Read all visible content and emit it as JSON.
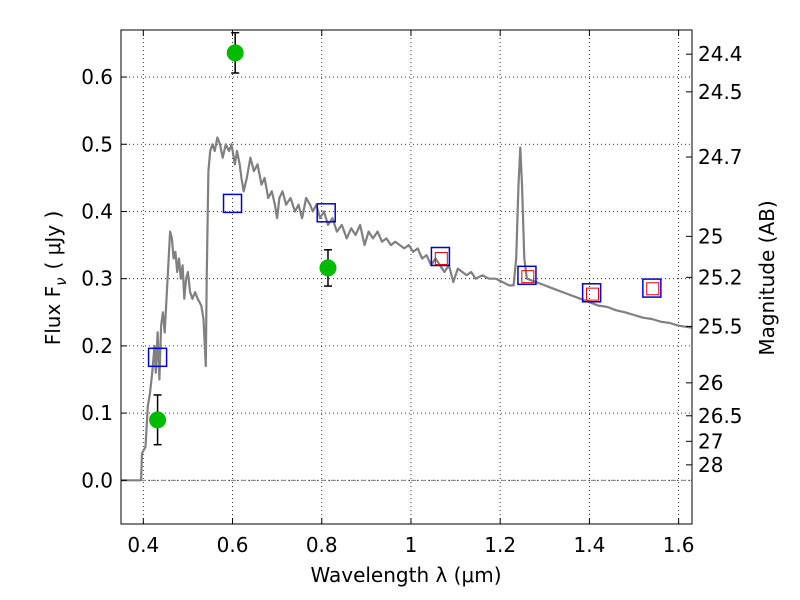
{
  "chart_data": {
    "type": "scatter",
    "xlabel": "Wavelength  λ (μm)",
    "ylabel": "Flux  F",
    "ylabel_sub": "ν",
    "ylabel_unit": "( μJy )",
    "y2label": "Magnitude (AB)",
    "xlim": [
      0.35,
      1.63
    ],
    "ylim": [
      -0.065,
      0.67
    ],
    "grid": true,
    "grid_style": "dotted",
    "x_ticks": [
      {
        "value": 0.4,
        "label": "0.4"
      },
      {
        "value": 0.6,
        "label": "0.6"
      },
      {
        "value": 0.8,
        "label": "0.8"
      },
      {
        "value": 1.0,
        "label": "1"
      },
      {
        "value": 1.2,
        "label": "1.2"
      },
      {
        "value": 1.4,
        "label": "1.4"
      },
      {
        "value": 1.6,
        "label": "1.6"
      }
    ],
    "y_ticks": [
      {
        "value": 0.0,
        "label": "0.0"
      },
      {
        "value": 0.1,
        "label": "0.1"
      },
      {
        "value": 0.2,
        "label": "0.2"
      },
      {
        "value": 0.3,
        "label": "0.3"
      },
      {
        "value": 0.4,
        "label": "0.4"
      },
      {
        "value": 0.5,
        "label": "0.5"
      },
      {
        "value": 0.6,
        "label": "0.6"
      }
    ],
    "y2_ticks": [
      {
        "flux": 0.634,
        "label": "24.4"
      },
      {
        "flux": 0.578,
        "label": "24.5"
      },
      {
        "flux": 0.481,
        "label": "24.7"
      },
      {
        "flux": 0.363,
        "label": "25"
      },
      {
        "flux": 0.302,
        "label": "25.2"
      },
      {
        "flux": 0.229,
        "label": "25.5"
      },
      {
        "flux": 0.145,
        "label": "26"
      },
      {
        "flux": 0.096,
        "label": "26.5"
      },
      {
        "flux": 0.058,
        "label": "27"
      },
      {
        "flux": 0.023,
        "label": "28"
      }
    ],
    "colors": {
      "model": "#808080",
      "observed": "#00bb00",
      "model_band": "#0000dd",
      "model_band_inner": "#ee0000",
      "zero_line": "#808080"
    },
    "model_sed": [
      [
        0.35,
        0.0
      ],
      [
        0.388,
        0.0
      ],
      [
        0.395,
        0.0
      ],
      [
        0.397,
        0.04
      ],
      [
        0.405,
        0.05
      ],
      [
        0.41,
        0.11
      ],
      [
        0.415,
        0.13
      ],
      [
        0.42,
        0.16
      ],
      [
        0.425,
        0.2
      ],
      [
        0.428,
        0.16
      ],
      [
        0.432,
        0.22
      ],
      [
        0.436,
        0.15
      ],
      [
        0.44,
        0.23
      ],
      [
        0.444,
        0.25
      ],
      [
        0.448,
        0.22
      ],
      [
        0.452,
        0.27
      ],
      [
        0.456,
        0.32
      ],
      [
        0.46,
        0.37
      ],
      [
        0.464,
        0.36
      ],
      [
        0.468,
        0.33
      ],
      [
        0.472,
        0.34
      ],
      [
        0.476,
        0.31
      ],
      [
        0.48,
        0.33
      ],
      [
        0.484,
        0.3
      ],
      [
        0.488,
        0.32
      ],
      [
        0.492,
        0.27
      ],
      [
        0.496,
        0.3
      ],
      [
        0.5,
        0.31
      ],
      [
        0.505,
        0.28
      ],
      [
        0.51,
        0.27
      ],
      [
        0.516,
        0.28
      ],
      [
        0.522,
        0.27
      ],
      [
        0.53,
        0.26
      ],
      [
        0.535,
        0.24
      ],
      [
        0.54,
        0.17
      ],
      [
        0.542,
        0.3
      ],
      [
        0.546,
        0.46
      ],
      [
        0.55,
        0.49
      ],
      [
        0.555,
        0.5
      ],
      [
        0.56,
        0.49
      ],
      [
        0.566,
        0.51
      ],
      [
        0.572,
        0.5
      ],
      [
        0.578,
        0.48
      ],
      [
        0.585,
        0.5
      ],
      [
        0.592,
        0.49
      ],
      [
        0.598,
        0.5
      ],
      [
        0.605,
        0.47
      ],
      [
        0.61,
        0.49
      ],
      [
        0.616,
        0.47
      ],
      [
        0.62,
        0.45
      ],
      [
        0.625,
        0.43
      ],
      [
        0.632,
        0.45
      ],
      [
        0.64,
        0.48
      ],
      [
        0.648,
        0.46
      ],
      [
        0.656,
        0.47
      ],
      [
        0.665,
        0.44
      ],
      [
        0.672,
        0.45
      ],
      [
        0.68,
        0.42
      ],
      [
        0.688,
        0.43
      ],
      [
        0.695,
        0.41
      ],
      [
        0.7,
        0.39
      ],
      [
        0.705,
        0.42
      ],
      [
        0.712,
        0.43
      ],
      [
        0.72,
        0.41
      ],
      [
        0.73,
        0.42
      ],
      [
        0.74,
        0.4
      ],
      [
        0.748,
        0.41
      ],
      [
        0.756,
        0.39
      ],
      [
        0.765,
        0.42
      ],
      [
        0.774,
        0.41
      ],
      [
        0.78,
        0.4
      ],
      [
        0.788,
        0.41
      ],
      [
        0.796,
        0.39
      ],
      [
        0.805,
        0.4
      ],
      [
        0.814,
        0.38
      ],
      [
        0.824,
        0.39
      ],
      [
        0.834,
        0.37
      ],
      [
        0.845,
        0.38
      ],
      [
        0.856,
        0.36
      ],
      [
        0.866,
        0.375
      ],
      [
        0.876,
        0.365
      ],
      [
        0.886,
        0.38
      ],
      [
        0.896,
        0.35
      ],
      [
        0.905,
        0.37
      ],
      [
        0.915,
        0.36
      ],
      [
        0.925,
        0.37
      ],
      [
        0.935,
        0.355
      ],
      [
        0.945,
        0.36
      ],
      [
        0.955,
        0.35
      ],
      [
        0.965,
        0.355
      ],
      [
        0.975,
        0.35
      ],
      [
        0.985,
        0.345
      ],
      [
        0.995,
        0.35
      ],
      [
        1.005,
        0.34
      ],
      [
        1.015,
        0.345
      ],
      [
        1.025,
        0.33
      ],
      [
        1.035,
        0.335
      ],
      [
        1.045,
        0.32
      ],
      [
        1.055,
        0.33
      ],
      [
        1.065,
        0.32
      ],
      [
        1.075,
        0.31
      ],
      [
        1.085,
        0.32
      ],
      [
        1.095,
        0.295
      ],
      [
        1.105,
        0.315
      ],
      [
        1.115,
        0.31
      ],
      [
        1.125,
        0.305
      ],
      [
        1.135,
        0.31
      ],
      [
        1.145,
        0.3
      ],
      [
        1.16,
        0.305
      ],
      [
        1.175,
        0.3
      ],
      [
        1.19,
        0.3
      ],
      [
        1.205,
        0.295
      ],
      [
        1.22,
        0.29
      ],
      [
        1.23,
        0.29
      ],
      [
        1.236,
        0.33
      ],
      [
        1.241,
        0.44
      ],
      [
        1.245,
        0.495
      ],
      [
        1.249,
        0.44
      ],
      [
        1.254,
        0.33
      ],
      [
        1.26,
        0.3
      ],
      [
        1.28,
        0.295
      ],
      [
        1.3,
        0.29
      ],
      [
        1.32,
        0.285
      ],
      [
        1.34,
        0.28
      ],
      [
        1.36,
        0.275
      ],
      [
        1.38,
        0.27
      ],
      [
        1.4,
        0.265
      ],
      [
        1.42,
        0.26
      ],
      [
        1.44,
        0.258
      ],
      [
        1.46,
        0.253
      ],
      [
        1.48,
        0.25
      ],
      [
        1.5,
        0.246
      ],
      [
        1.52,
        0.242
      ],
      [
        1.54,
        0.24
      ],
      [
        1.56,
        0.236
      ],
      [
        1.58,
        0.234
      ],
      [
        1.6,
        0.23
      ],
      [
        1.63,
        0.227
      ]
    ],
    "observed_points": [
      {
        "x": 0.432,
        "y": 0.09,
        "err": 0.037
      },
      {
        "x": 0.606,
        "y": 0.636,
        "err": 0.03
      },
      {
        "x": 0.814,
        "y": 0.316,
        "err": 0.027
      }
    ],
    "model_band_points": [
      {
        "x": 0.432,
        "y": 0.183
      },
      {
        "x": 0.6,
        "y": 0.412
      },
      {
        "x": 0.81,
        "y": 0.398
      },
      {
        "x": 1.066,
        "y": 0.333
      },
      {
        "x": 1.26,
        "y": 0.305
      },
      {
        "x": 1.405,
        "y": 0.279
      },
      {
        "x": 1.54,
        "y": 0.286
      }
    ],
    "model_band_inner_points": [
      {
        "x": 1.068,
        "y": 0.33
      },
      {
        "x": 1.262,
        "y": 0.303
      },
      {
        "x": 1.407,
        "y": 0.277
      },
      {
        "x": 1.542,
        "y": 0.285
      }
    ]
  }
}
